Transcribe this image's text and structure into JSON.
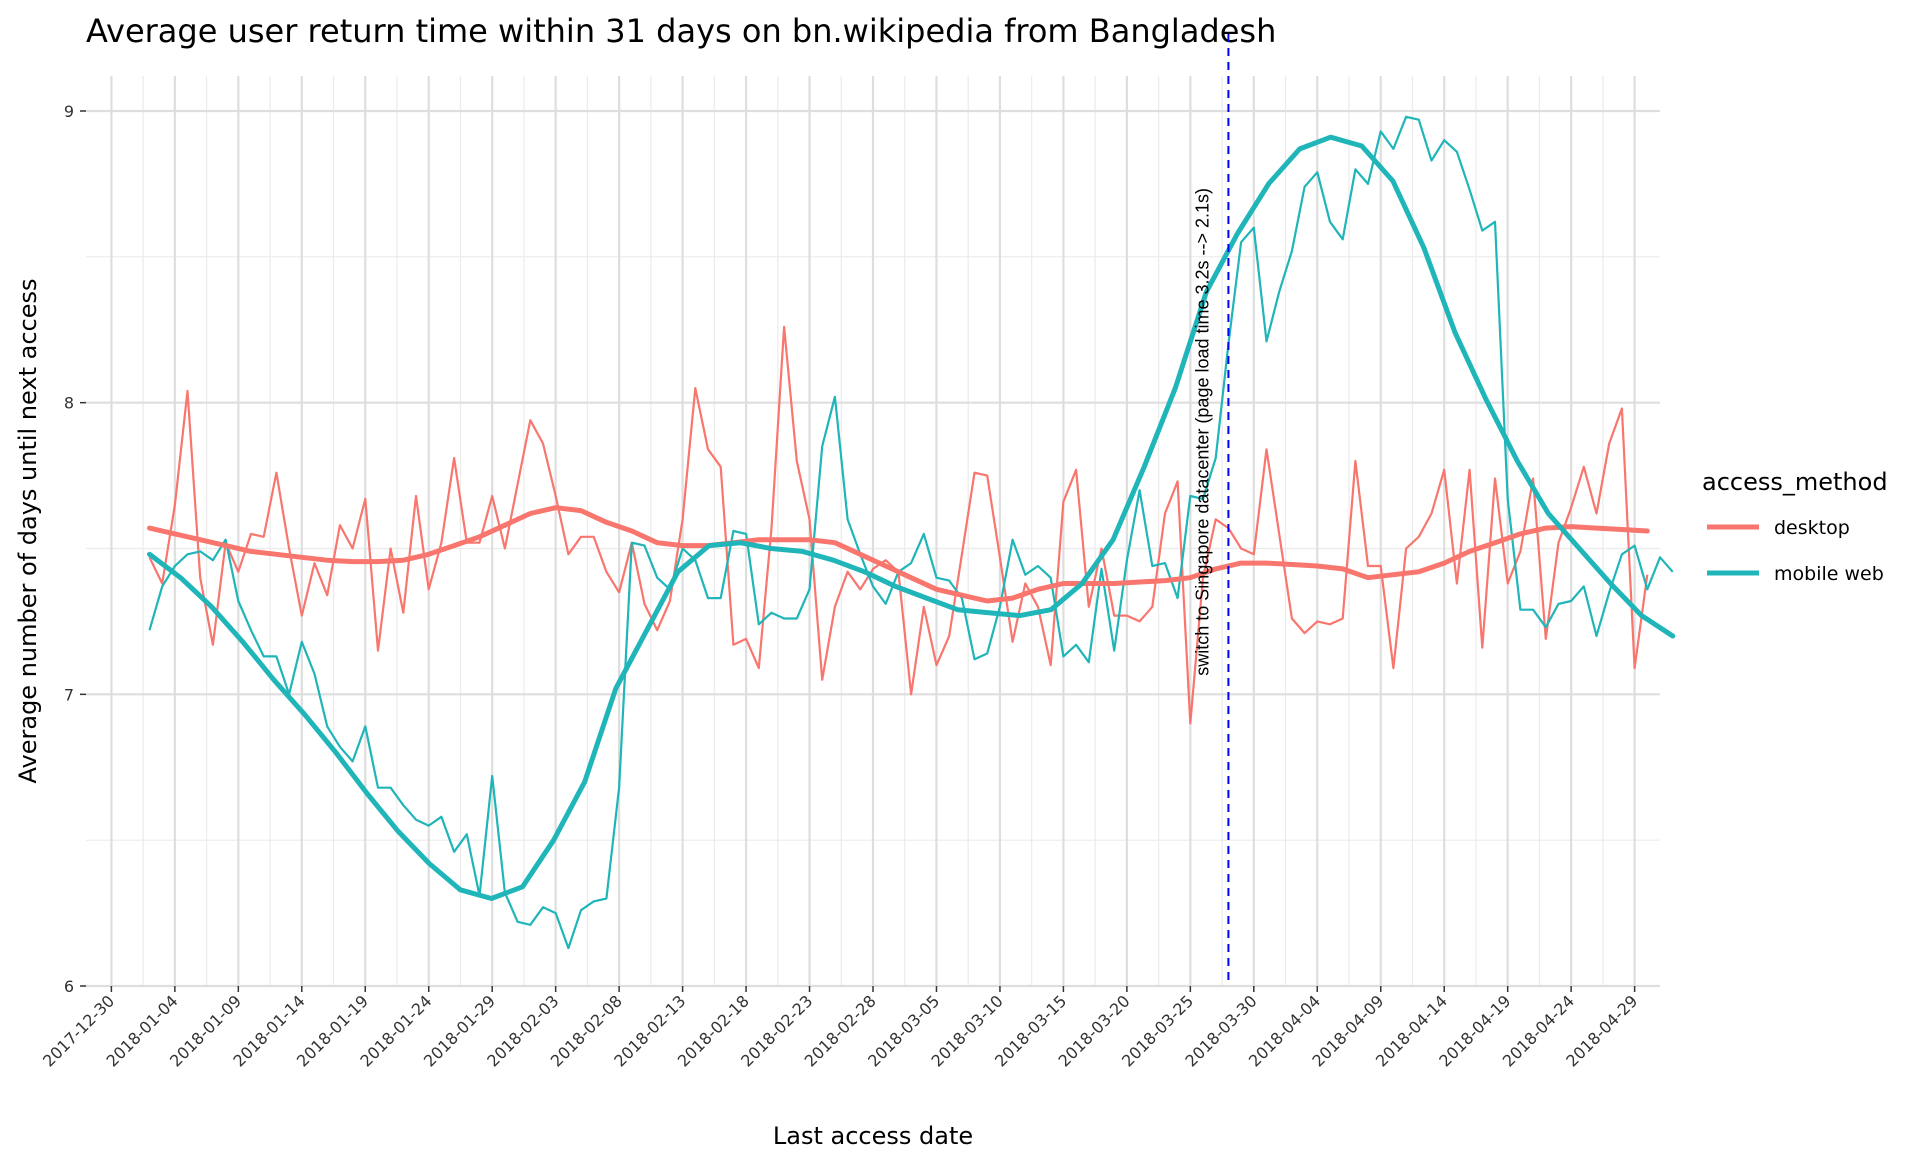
{
  "chart_data": {
    "type": "line",
    "title": "Average user return time within 31 days on bn.wikipedia from Bangladesh",
    "xlabel": "Last access date",
    "ylabel": "Average number of days until next access",
    "x_start": "2018-01-02",
    "x_ticks": [
      "2017-12-30",
      "2018-01-04",
      "2018-01-09",
      "2018-01-14",
      "2018-01-19",
      "2018-01-24",
      "2018-01-29",
      "2018-02-03",
      "2018-02-08",
      "2018-02-13",
      "2018-02-18",
      "2018-02-23",
      "2018-02-28",
      "2018-03-05",
      "2018-03-10",
      "2018-03-15",
      "2018-03-20",
      "2018-03-25",
      "2018-03-30",
      "2018-04-04",
      "2018-04-09",
      "2018-04-14",
      "2018-04-19",
      "2018-04-24",
      "2018-04-29"
    ],
    "xlim": [
      "2017-12-28",
      "2018-05-01"
    ],
    "y_ticks": [
      6,
      7,
      8,
      9
    ],
    "ylim": [
      6,
      9.12
    ],
    "grid": true,
    "legend": {
      "title": "access_method",
      "position": "right"
    },
    "annotation": {
      "date": "2018-03-28",
      "text": "switch to Singapore datacenter (page load time 3.2s --> 2.1s)",
      "color": "#0000ff"
    },
    "series": [
      {
        "name": "desktop",
        "color": "#f8766d",
        "values": [
          7.47,
          7.38,
          7.65,
          8.04,
          7.4,
          7.17,
          7.52,
          7.42,
          7.55,
          7.54,
          7.76,
          7.5,
          7.27,
          7.45,
          7.34,
          7.58,
          7.5,
          7.67,
          7.15,
          7.5,
          7.28,
          7.68,
          7.36,
          7.52,
          7.81,
          7.52,
          7.52,
          7.68,
          7.5,
          7.72,
          7.94,
          7.86,
          7.68,
          7.48,
          7.54,
          7.54,
          7.42,
          7.35,
          7.52,
          7.31,
          7.22,
          7.32,
          7.6,
          8.05,
          7.84,
          7.78,
          7.17,
          7.19,
          7.09,
          7.57,
          8.26,
          7.8,
          7.6,
          7.05,
          7.3,
          7.42,
          7.36,
          7.43,
          7.46,
          7.42,
          7.0,
          7.3,
          7.1,
          7.2,
          7.48,
          7.76,
          7.75,
          7.47,
          7.18,
          7.38,
          7.3,
          7.1,
          7.66,
          7.77,
          7.3,
          7.5,
          7.27,
          7.27,
          7.25,
          7.3,
          7.62,
          7.73,
          6.9,
          7.4,
          7.6,
          7.57,
          7.5,
          7.48,
          7.84,
          7.55,
          7.26,
          7.21,
          7.25,
          7.24,
          7.26,
          7.8,
          7.44,
          7.44,
          7.09,
          7.5,
          7.54,
          7.62,
          7.77,
          7.38,
          7.77,
          7.16,
          7.74,
          7.38,
          7.49,
          7.74,
          7.19,
          7.52,
          7.64,
          7.78,
          7.62,
          7.86,
          7.98,
          7.09,
          7.41
        ],
        "smooth": [
          7.57,
          7.55,
          7.53,
          7.51,
          7.49,
          7.48,
          7.47,
          7.46,
          7.455,
          7.455,
          7.46,
          7.48,
          7.51,
          7.54,
          7.58,
          7.62,
          7.64,
          7.63,
          7.59,
          7.56,
          7.52,
          7.51,
          7.51,
          7.52,
          7.53,
          7.53,
          7.53,
          7.52,
          7.48,
          7.44,
          7.4,
          7.36,
          7.34,
          7.32,
          7.33,
          7.36,
          7.38,
          7.38,
          7.38,
          7.385,
          7.39,
          7.4,
          7.43,
          7.45,
          7.45,
          7.445,
          7.44,
          7.43,
          7.4,
          7.41,
          7.42,
          7.45,
          7.49,
          7.52,
          7.55,
          7.57,
          7.575,
          7.57,
          7.565,
          7.56
        ]
      },
      {
        "name": "mobile web",
        "color": "#1fb5b9",
        "values": [
          7.22,
          7.37,
          7.44,
          7.48,
          7.49,
          7.46,
          7.53,
          7.32,
          7.22,
          7.13,
          7.13,
          7.0,
          7.18,
          7.07,
          6.89,
          6.82,
          6.77,
          6.89,
          6.68,
          6.68,
          6.62,
          6.57,
          6.55,
          6.58,
          6.46,
          6.52,
          6.31,
          6.72,
          6.32,
          6.22,
          6.21,
          6.27,
          6.25,
          6.13,
          6.26,
          6.29,
          6.3,
          6.68,
          7.52,
          7.51,
          7.4,
          7.36,
          7.5,
          7.46,
          7.33,
          7.33,
          7.56,
          7.55,
          7.24,
          7.28,
          7.26,
          7.26,
          7.36,
          7.85,
          8.02,
          7.6,
          7.48,
          7.37,
          7.31,
          7.42,
          7.45,
          7.55,
          7.4,
          7.39,
          7.33,
          7.12,
          7.14,
          7.3,
          7.53,
          7.41,
          7.44,
          7.4,
          7.13,
          7.17,
          7.11,
          7.43,
          7.15,
          7.46,
          7.7,
          7.44,
          7.45,
          7.33,
          7.68,
          7.67,
          7.81,
          8.2,
          8.55,
          8.6,
          8.21,
          8.38,
          8.52,
          8.74,
          8.79,
          8.62,
          8.56,
          8.8,
          8.75,
          8.93,
          8.87,
          8.98,
          8.97,
          8.83,
          8.9,
          8.86,
          8.73,
          8.59,
          8.62,
          7.67,
          7.29,
          7.29,
          7.23,
          7.31,
          7.32,
          7.37,
          7.2,
          7.35,
          7.48,
          7.51,
          7.36,
          7.47,
          7.42
        ],
        "smooth": [
          7.48,
          7.4,
          7.3,
          7.18,
          7.05,
          6.93,
          6.8,
          6.66,
          6.53,
          6.42,
          6.33,
          6.3,
          6.34,
          6.5,
          6.7,
          7.02,
          7.22,
          7.42,
          7.51,
          7.52,
          7.5,
          7.49,
          7.46,
          7.42,
          7.37,
          7.33,
          7.29,
          7.28,
          7.27,
          7.29,
          7.38,
          7.53,
          7.78,
          8.05,
          8.38,
          8.58,
          8.75,
          8.87,
          8.91,
          8.88,
          8.76,
          8.53,
          8.24,
          8.01,
          7.8,
          7.62,
          7.5,
          7.38,
          7.27,
          7.2
        ]
      }
    ]
  }
}
